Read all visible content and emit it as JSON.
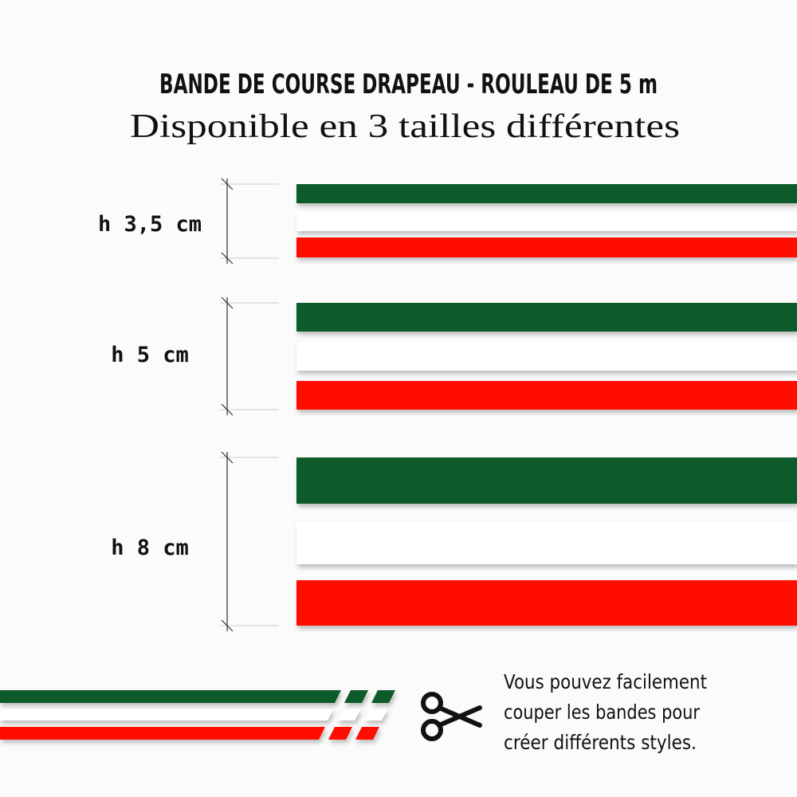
{
  "header": {
    "title": "BANDE DE COURSE DRAPEAU - ROULEAU DE 5 m",
    "subtitle": "Disponible en 3 tailles différentes"
  },
  "sizes": [
    {
      "label": "h 3,5 cm"
    },
    {
      "label": "h 5 cm"
    },
    {
      "label": "h 8 cm"
    }
  ],
  "note": {
    "lines": [
      "Vous pouvez facilement",
      "couper les bandes pour",
      "créer différents styles."
    ]
  }
}
